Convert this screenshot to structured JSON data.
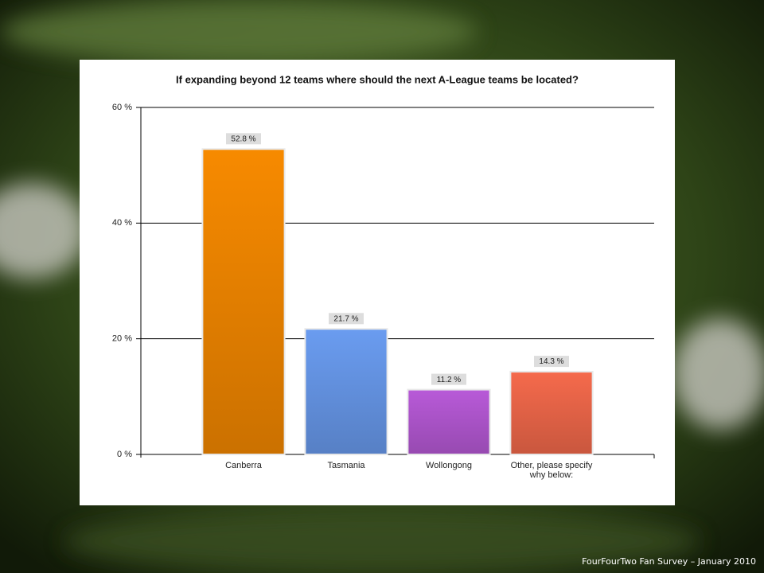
{
  "chart_data": {
    "type": "bar",
    "title": "If expanding beyond 12 teams where should the next A-League teams be located?",
    "categories": [
      "Canberra",
      "Tasmania",
      "Wollongong",
      "Other, please specify why below:"
    ],
    "values": [
      52.8,
      21.7,
      11.2,
      14.3
    ],
    "value_labels": [
      "52.8 %",
      "21.7 %",
      "11.2 %",
      "14.3 %"
    ],
    "colors": [
      "#f78a00",
      "#6a9cf0",
      "#b85ad8",
      "#f56a4c"
    ],
    "ylim": [
      0,
      60
    ],
    "yticks": [
      {
        "value": 0,
        "label": "0 %"
      },
      {
        "value": 20,
        "label": "20 %"
      },
      {
        "value": 40,
        "label": "40 %"
      },
      {
        "value": 60,
        "label": "60 %"
      }
    ],
    "grid": true
  },
  "footer": "FourFourTwo Fan Survey – January 2010"
}
